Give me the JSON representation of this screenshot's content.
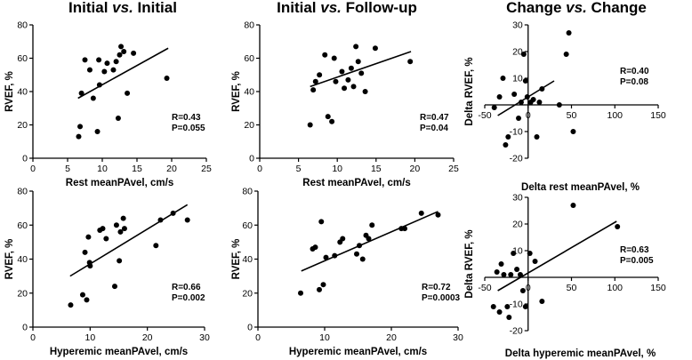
{
  "titles": {
    "col1": {
      "a": "Initial ",
      "b": "vs.",
      "c": " Initial"
    },
    "col2": {
      "a": "Initial ",
      "b": "vs.",
      "c": " Follow-up"
    },
    "col3": {
      "a": "Change ",
      "b": "vs.",
      "c": " Change"
    }
  },
  "chart_data": [
    {
      "type": "scatter",
      "id": "c1",
      "xlabel": "Rest meanPAvel, cm/s",
      "ylabel": "RVEF, %",
      "xlim": [
        0,
        25
      ],
      "ylim": [
        0,
        80
      ],
      "xticks": [
        0,
        5,
        10,
        15,
        20,
        25
      ],
      "yticks": [
        0,
        20,
        40,
        60,
        80
      ],
      "stats": [
        "R=0.43",
        "P=0.055"
      ],
      "points": [
        [
          6.6,
          13
        ],
        [
          6.8,
          19
        ],
        [
          7.0,
          39
        ],
        [
          7.5,
          59
        ],
        [
          8.2,
          53
        ],
        [
          8.7,
          36
        ],
        [
          9.3,
          16
        ],
        [
          9.5,
          59
        ],
        [
          9.6,
          44
        ],
        [
          10.3,
          52
        ],
        [
          10.7,
          57
        ],
        [
          11.6,
          53
        ],
        [
          12.0,
          58
        ],
        [
          12.3,
          24
        ],
        [
          12.5,
          62
        ],
        [
          12.7,
          67
        ],
        [
          13.1,
          64
        ],
        [
          13.6,
          39
        ],
        [
          14.5,
          63
        ],
        [
          19.3,
          48
        ]
      ],
      "fit": [
        [
          6.5,
          36
        ],
        [
          19.5,
          66
        ]
      ]
    },
    {
      "type": "scatter",
      "id": "c2",
      "xlabel": "Rest meanPAvel, cm/s",
      "ylabel": "RVEF, %",
      "xlim": [
        0,
        25
      ],
      "ylim": [
        0,
        80
      ],
      "xticks": [
        0,
        5,
        10,
        15,
        20,
        25
      ],
      "yticks": [
        0,
        20,
        40,
        60,
        80
      ],
      "stats": [
        "R=0.47",
        "P=0.04"
      ],
      "points": [
        [
          6.5,
          20
        ],
        [
          6.9,
          41
        ],
        [
          7.2,
          46
        ],
        [
          7.7,
          50
        ],
        [
          8.4,
          62
        ],
        [
          8.8,
          25
        ],
        [
          9.3,
          22
        ],
        [
          9.6,
          60
        ],
        [
          9.8,
          46
        ],
        [
          10.6,
          52
        ],
        [
          10.9,
          42
        ],
        [
          11.4,
          47
        ],
        [
          11.8,
          54
        ],
        [
          12.1,
          43
        ],
        [
          12.4,
          67
        ],
        [
          12.7,
          58
        ],
        [
          13.1,
          51
        ],
        [
          13.6,
          40
        ],
        [
          14.9,
          66
        ],
        [
          19.4,
          58
        ]
      ],
      "fit": [
        [
          6.5,
          43
        ],
        [
          19.5,
          64
        ]
      ]
    },
    {
      "type": "scatter",
      "id": "c3",
      "xlabel": "Delta rest meanPAvel, %",
      "ylabel": "Delta RVEF, %",
      "xlim": [
        -50,
        150
      ],
      "ylim": [
        -20,
        30
      ],
      "xticks": [
        -50,
        0,
        50,
        100,
        150
      ],
      "yticks": [
        -20,
        -10,
        0,
        10,
        20,
        30
      ],
      "stats": [
        "R=0.40",
        "P=0.08"
      ],
      "points": [
        [
          -39,
          -1
        ],
        [
          -33,
          3
        ],
        [
          -29,
          10
        ],
        [
          -26,
          -15
        ],
        [
          -23,
          -12
        ],
        [
          -16,
          4
        ],
        [
          -11,
          -5
        ],
        [
          -8,
          1
        ],
        [
          -5,
          19
        ],
        [
          -3,
          9
        ],
        [
          -1,
          3
        ],
        [
          3,
          1
        ],
        [
          6,
          2
        ],
        [
          10,
          -12
        ],
        [
          13,
          1
        ],
        [
          16,
          6
        ],
        [
          36,
          0
        ],
        [
          44,
          19
        ],
        [
          47,
          27
        ],
        [
          52,
          -10
        ]
      ],
      "fit": [
        [
          -35,
          -4
        ],
        [
          -10,
          1
        ],
        [
          0,
          3
        ],
        [
          30,
          9
        ]
      ]
    },
    {
      "type": "scatter",
      "id": "c4",
      "xlabel": "Hyperemic meanPAvel, cm/s",
      "ylabel": "RVEF, %",
      "xlim": [
        0,
        30
      ],
      "ylim": [
        0,
        80
      ],
      "xticks": [
        0,
        10,
        20,
        30
      ],
      "yticks": [
        0,
        20,
        40,
        60,
        80
      ],
      "stats": [
        "R=0.66",
        "P=0.002"
      ],
      "points": [
        [
          6.6,
          13
        ],
        [
          8.7,
          19
        ],
        [
          9.1,
          44
        ],
        [
          9.4,
          16
        ],
        [
          9.7,
          53
        ],
        [
          9.9,
          38
        ],
        [
          10.0,
          36
        ],
        [
          11.7,
          57
        ],
        [
          12.2,
          58
        ],
        [
          12.8,
          52
        ],
        [
          14.3,
          24
        ],
        [
          14.6,
          60
        ],
        [
          15.1,
          39
        ],
        [
          15.3,
          56
        ],
        [
          15.8,
          64
        ],
        [
          16.0,
          58
        ],
        [
          21.5,
          48
        ],
        [
          22.3,
          63
        ],
        [
          24.5,
          67
        ],
        [
          27.0,
          63
        ]
      ],
      "fit": [
        [
          6.5,
          30
        ],
        [
          27,
          72
        ]
      ]
    },
    {
      "type": "scatter",
      "id": "c5",
      "xlabel": "Hyperemic meanPAvel, cm/s",
      "ylabel": "RVEF, %",
      "xlim": [
        0,
        30
      ],
      "ylim": [
        0,
        80
      ],
      "xticks": [
        0,
        10,
        20,
        30
      ],
      "yticks": [
        0,
        20,
        40,
        60,
        80
      ],
      "stats": [
        "R=0.72",
        "P=0.0003"
      ],
      "points": [
        [
          6.4,
          20
        ],
        [
          8.2,
          46
        ],
        [
          8.6,
          47
        ],
        [
          9.2,
          22
        ],
        [
          9.5,
          62
        ],
        [
          9.8,
          25
        ],
        [
          10.2,
          41
        ],
        [
          11.5,
          42
        ],
        [
          12.3,
          50
        ],
        [
          12.7,
          52
        ],
        [
          14.8,
          43
        ],
        [
          15.2,
          48
        ],
        [
          15.7,
          40
        ],
        [
          16.2,
          54
        ],
        [
          16.6,
          52
        ],
        [
          17.1,
          60
        ],
        [
          21.5,
          58
        ],
        [
          22.0,
          58
        ],
        [
          24.5,
          67
        ],
        [
          27.0,
          66
        ]
      ],
      "fit": [
        [
          6.5,
          33
        ],
        [
          27,
          68
        ]
      ]
    },
    {
      "type": "scatter",
      "id": "c6",
      "xlabel": "Delta hyperemic meanPAvel, %",
      "ylabel": "Delta RVEF, %",
      "xlim": [
        -50,
        150
      ],
      "ylim": [
        -20,
        30
      ],
      "xticks": [
        -50,
        0,
        50,
        100,
        150
      ],
      "yticks": [
        -20,
        -10,
        0,
        10,
        20,
        30
      ],
      "stats": [
        "R=0.63",
        "P=0.005"
      ],
      "points": [
        [
          -40,
          -11
        ],
        [
          -36,
          2
        ],
        [
          -33,
          -13
        ],
        [
          -31,
          5
        ],
        [
          -28,
          1
        ],
        [
          -24,
          -11
        ],
        [
          -22,
          -15
        ],
        [
          -20,
          1
        ],
        [
          -17,
          9
        ],
        [
          -13,
          3
        ],
        [
          -9,
          1
        ],
        [
          -6,
          -5
        ],
        [
          -3,
          -11
        ],
        [
          2,
          9
        ],
        [
          8,
          6
        ],
        [
          16,
          -9
        ],
        [
          52,
          27
        ],
        [
          103,
          19
        ]
      ],
      "fit": [
        [
          -35,
          -5
        ],
        [
          102,
          21
        ]
      ]
    }
  ]
}
